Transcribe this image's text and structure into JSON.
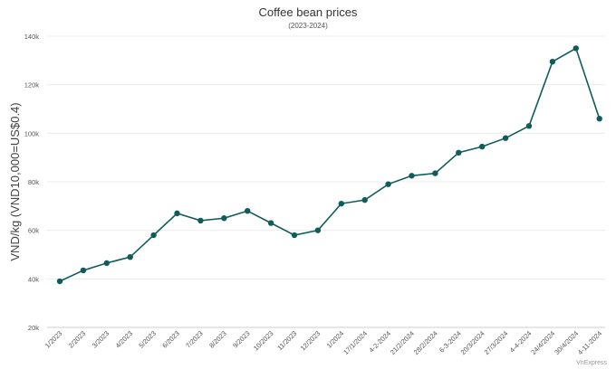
{
  "chart_data": {
    "type": "line",
    "title": "Coffee bean prices",
    "subtitle": "(2023-2024)",
    "ylabel": "VND/kg (VND10,000=US$0.4)",
    "xlabel": "",
    "ylim": [
      20000,
      140000
    ],
    "yticks": [
      20000,
      40000,
      60000,
      80000,
      100000,
      120000,
      140000
    ],
    "ytick_labels": [
      "20k",
      "40k",
      "60k",
      "80k",
      "100k",
      "120k",
      "140k"
    ],
    "categories": [
      "1/2023",
      "2/2023",
      "3/2023",
      "4/2023",
      "5/2023",
      "6/2023",
      "7/2023",
      "8/2023",
      "9/2023",
      "10/2023",
      "11/2023",
      "12/2023",
      "1/2024",
      "17/1/2024",
      "4-2-2024",
      "21/2/2024",
      "28/2/2024",
      "6-3-2024",
      "20/3/2024",
      "27/3/2024",
      "4-4-2024",
      "24/4/2024",
      "30/4/2024",
      "4-11-2024"
    ],
    "series": [
      {
        "values": [
          39000,
          43500,
          46500,
          49000,
          58000,
          67000,
          64000,
          65000,
          68000,
          63000,
          58000,
          60000,
          71000,
          72500,
          79000,
          82500,
          83500,
          92000,
          94500,
          98000,
          103000,
          129500,
          135000,
          106000
        ],
        "color": "#0f5c5a"
      }
    ],
    "grid": true,
    "credit": "VnExpress"
  }
}
